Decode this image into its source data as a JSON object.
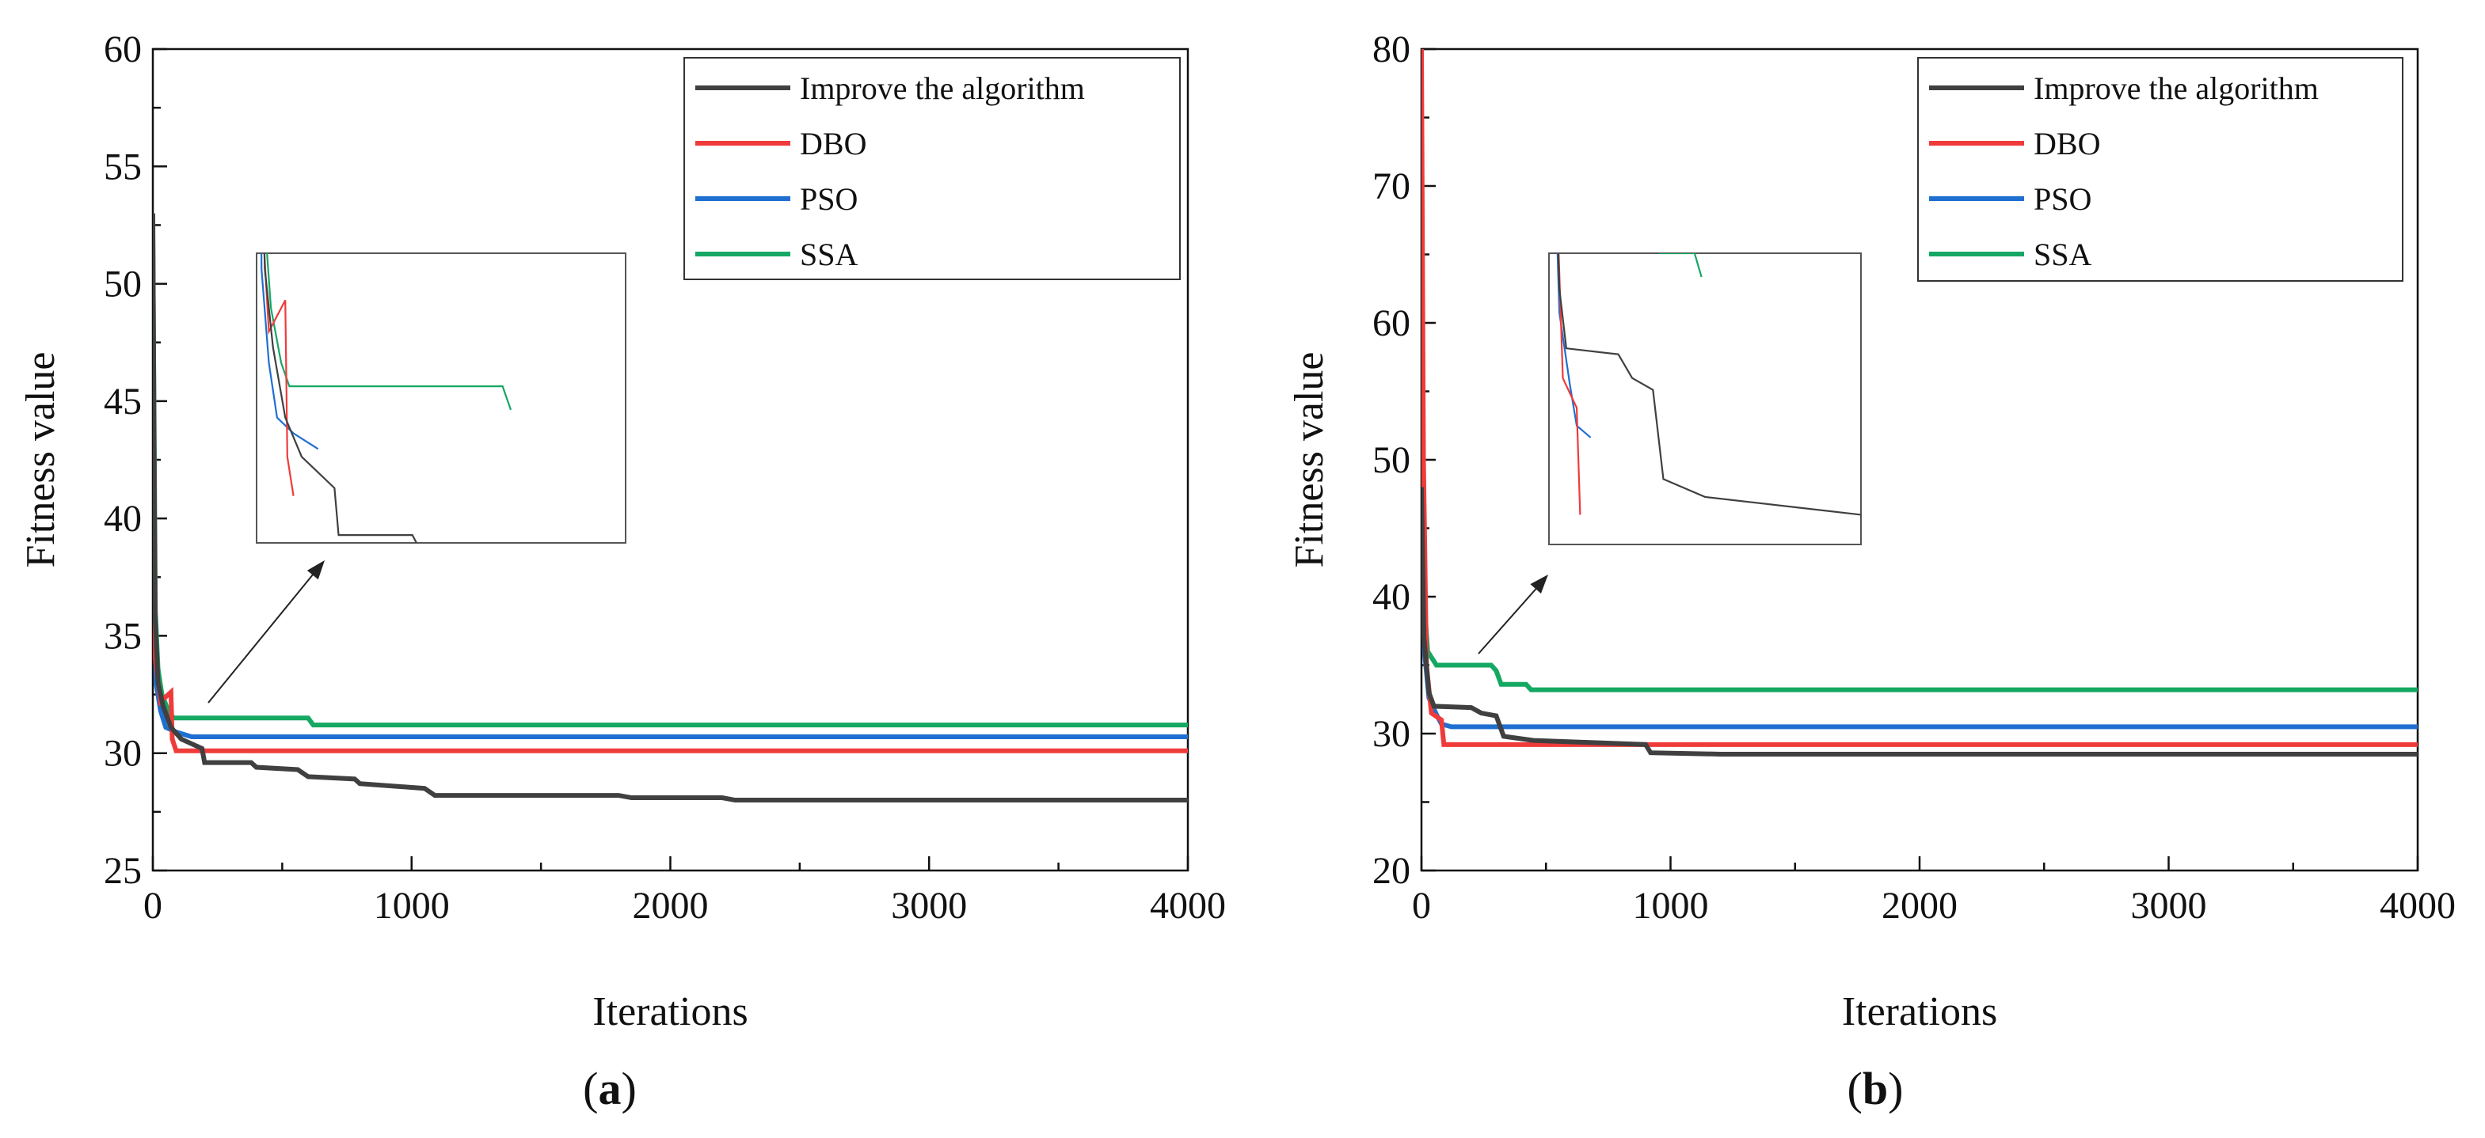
{
  "colors": {
    "improve": "#404040",
    "dbo": "#f03b3b",
    "pso": "#1f6fd1",
    "ssa": "#15a862",
    "axis": "#111111",
    "arrow": "#222222"
  },
  "chart_data": [
    {
      "type": "line",
      "panel_label": "a",
      "xlabel": "Iterations",
      "ylabel": "Fitness value",
      "xlim": [
        0,
        4000
      ],
      "ylim": [
        25,
        60
      ],
      "xticks": [
        0,
        1000,
        2000,
        3000,
        4000
      ],
      "yticks": [
        25,
        30,
        35,
        40,
        45,
        50,
        55,
        60
      ],
      "legend_position": "top-right",
      "series": [
        {
          "name": "Improve the algorithm",
          "color_key": "improve",
          "points": [
            [
              0,
              53
            ],
            [
              8,
              36
            ],
            [
              20,
              33
            ],
            [
              40,
              32
            ],
            [
              70,
              31.1
            ],
            [
              110,
              30.6
            ],
            [
              190,
              30.2
            ],
            [
              200,
              29.6
            ],
            [
              380,
              29.6
            ],
            [
              400,
              29.4
            ],
            [
              560,
              29.3
            ],
            [
              600,
              29.0
            ],
            [
              780,
              28.9
            ],
            [
              800,
              28.7
            ],
            [
              1050,
              28.5
            ],
            [
              1090,
              28.2
            ],
            [
              1800,
              28.2
            ],
            [
              1850,
              28.1
            ],
            [
              2200,
              28.1
            ],
            [
              2250,
              28.0
            ],
            [
              4000,
              28.0
            ]
          ]
        },
        {
          "name": "DBO",
          "color_key": "dbo",
          "points": [
            [
              0,
              50
            ],
            [
              10,
              34
            ],
            [
              30,
              32.2
            ],
            [
              70,
              32.6
            ],
            [
              75,
              30.6
            ],
            [
              90,
              30.1
            ],
            [
              4000,
              30.1
            ]
          ]
        },
        {
          "name": "PSO",
          "color_key": "pso",
          "points": [
            [
              0,
              46
            ],
            [
              12,
              33
            ],
            [
              30,
              31.8
            ],
            [
              50,
              31.1
            ],
            [
              90,
              30.9
            ],
            [
              150,
              30.7
            ],
            [
              4000,
              30.7
            ]
          ]
        },
        {
          "name": "SSA",
          "color_key": "ssa",
          "points": [
            [
              0,
              52
            ],
            [
              10,
              36
            ],
            [
              20,
              33.6
            ],
            [
              35,
              32.5
            ],
            [
              60,
              31.8
            ],
            [
              80,
              31.5
            ],
            [
              600,
              31.5
            ],
            [
              620,
              31.2
            ],
            [
              4000,
              31.2
            ]
          ]
        }
      ]
    },
    {
      "type": "line",
      "panel_label": "b",
      "xlabel": "Iterations",
      "ylabel": "Fitness value",
      "xlim": [
        0,
        4000
      ],
      "ylim": [
        20,
        80
      ],
      "xticks": [
        0,
        1000,
        2000,
        3000,
        4000
      ],
      "yticks": [
        20,
        30,
        40,
        50,
        60,
        70,
        80
      ],
      "legend_position": "top-right",
      "series": [
        {
          "name": "Improve the algorithm",
          "color_key": "improve",
          "points": [
            [
              0,
              48
            ],
            [
              10,
              37
            ],
            [
              30,
              33
            ],
            [
              50,
              32.0
            ],
            [
              200,
              31.9
            ],
            [
              240,
              31.5
            ],
            [
              300,
              31.3
            ],
            [
              330,
              29.8
            ],
            [
              450,
              29.5
            ],
            [
              600,
              29.4
            ],
            [
              900,
              29.2
            ],
            [
              920,
              28.6
            ],
            [
              1200,
              28.5
            ],
            [
              4000,
              28.5
            ]
          ]
        },
        {
          "name": "DBO",
          "color_key": "dbo",
          "points": [
            [
              0,
              80
            ],
            [
              8,
              50
            ],
            [
              20,
              35
            ],
            [
              40,
              31.5
            ],
            [
              80,
              31.0
            ],
            [
              90,
              29.2
            ],
            [
              4000,
              29.2
            ]
          ]
        },
        {
          "name": "PSO",
          "color_key": "pso",
          "points": [
            [
              0,
              52
            ],
            [
              12,
              36
            ],
            [
              30,
              32.6
            ],
            [
              60,
              31.4
            ],
            [
              80,
              30.7
            ],
            [
              120,
              30.5
            ],
            [
              4000,
              30.5
            ]
          ]
        },
        {
          "name": "SSA",
          "color_key": "ssa",
          "points": [
            [
              0,
              54
            ],
            [
              10,
              40
            ],
            [
              25,
              36
            ],
            [
              60,
              35.0
            ],
            [
              280,
              35.0
            ],
            [
              300,
              34.6
            ],
            [
              320,
              33.6
            ],
            [
              420,
              33.6
            ],
            [
              440,
              33.2
            ],
            [
              4000,
              33.2
            ]
          ]
        }
      ]
    }
  ]
}
